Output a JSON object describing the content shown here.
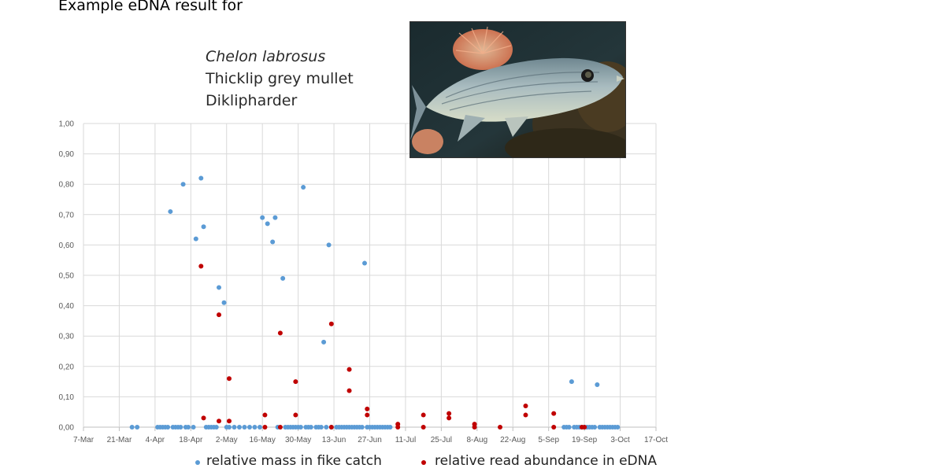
{
  "heading": "Example eDNA result for",
  "species": {
    "latin": "Chelon labrosus",
    "english": "Thicklip grey mullet",
    "dutch": "Diklipharder"
  },
  "photo": {
    "icon": "mullet-fish-photo"
  },
  "legend": [
    {
      "label": "relative mass in fike catch",
      "color": "#5b9bd5"
    },
    {
      "label": "relative read abundance in eDNA",
      "color": "#c00000"
    }
  ],
  "chart_data": {
    "type": "scatter",
    "xlabel": "",
    "ylabel": "",
    "x_ticks": [
      "7-Mar",
      "21-Mar",
      "4-Apr",
      "18-Apr",
      "2-May",
      "16-May",
      "30-May",
      "13-Jun",
      "27-Jun",
      "11-Jul",
      "25-Jul",
      "8-Aug",
      "22-Aug",
      "5-Sep",
      "19-Sep",
      "3-Oct",
      "17-Oct"
    ],
    "y_ticks": [
      "0,00",
      "0,10",
      "0,20",
      "0,30",
      "0,40",
      "0,50",
      "0,60",
      "0,70",
      "0,80",
      "0,90",
      "1,00"
    ],
    "xlim": [
      "7-Mar",
      "17-Oct"
    ],
    "ylim": [
      0,
      1
    ],
    "grid": true,
    "legend_position": "bottom",
    "series": [
      {
        "name": "relative mass in fike catch",
        "color": "#5b9bd5",
        "points": [
          [
            "26-Mar",
            0
          ],
          [
            "28-Mar",
            0
          ],
          [
            "5-Apr",
            0
          ],
          [
            "6-Apr",
            0
          ],
          [
            "7-Apr",
            0
          ],
          [
            "8-Apr",
            0
          ],
          [
            "9-Apr",
            0
          ],
          [
            "10-Apr",
            0.71
          ],
          [
            "11-Apr",
            0
          ],
          [
            "12-Apr",
            0
          ],
          [
            "13-Apr",
            0
          ],
          [
            "14-Apr",
            0
          ],
          [
            "15-Apr",
            0.8
          ],
          [
            "16-Apr",
            0
          ],
          [
            "17-Apr",
            0
          ],
          [
            "19-Apr",
            0
          ],
          [
            "20-Apr",
            0.62
          ],
          [
            "22-Apr",
            0.82
          ],
          [
            "23-Apr",
            0.66
          ],
          [
            "24-Apr",
            0
          ],
          [
            "25-Apr",
            0
          ],
          [
            "26-Apr",
            0
          ],
          [
            "27-Apr",
            0
          ],
          [
            "28-Apr",
            0
          ],
          [
            "29-Apr",
            0.46
          ],
          [
            "1-May",
            0.41
          ],
          [
            "2-May",
            0
          ],
          [
            "3-May",
            0
          ],
          [
            "5-May",
            0
          ],
          [
            "7-May",
            0
          ],
          [
            "9-May",
            0
          ],
          [
            "11-May",
            0
          ],
          [
            "13-May",
            0
          ],
          [
            "15-May",
            0
          ],
          [
            "16-May",
            0.69
          ],
          [
            "18-May",
            0.67
          ],
          [
            "20-May",
            0.61
          ],
          [
            "21-May",
            0.69
          ],
          [
            "22-May",
            0
          ],
          [
            "24-May",
            0.49
          ],
          [
            "25-May",
            0
          ],
          [
            "26-May",
            0
          ],
          [
            "27-May",
            0
          ],
          [
            "28-May",
            0
          ],
          [
            "29-May",
            0
          ],
          [
            "30-May",
            0
          ],
          [
            "31-May",
            0
          ],
          [
            "1-Jun",
            0.79
          ],
          [
            "2-Jun",
            0
          ],
          [
            "3-Jun",
            0
          ],
          [
            "4-Jun",
            0
          ],
          [
            "6-Jun",
            0
          ],
          [
            "7-Jun",
            0
          ],
          [
            "8-Jun",
            0
          ],
          [
            "9-Jun",
            0.28
          ],
          [
            "10-Jun",
            0
          ],
          [
            "11-Jun",
            0.6
          ],
          [
            "12-Jun",
            0
          ],
          [
            "14-Jun",
            0
          ],
          [
            "15-Jun",
            0
          ],
          [
            "16-Jun",
            0
          ],
          [
            "17-Jun",
            0
          ],
          [
            "18-Jun",
            0
          ],
          [
            "19-Jun",
            0
          ],
          [
            "20-Jun",
            0
          ],
          [
            "21-Jun",
            0
          ],
          [
            "22-Jun",
            0
          ],
          [
            "23-Jun",
            0
          ],
          [
            "24-Jun",
            0
          ],
          [
            "25-Jun",
            0.54
          ],
          [
            "26-Jun",
            0
          ],
          [
            "27-Jun",
            0
          ],
          [
            "28-Jun",
            0
          ],
          [
            "29-Jun",
            0
          ],
          [
            "30-Jun",
            0
          ],
          [
            "1-Jul",
            0
          ],
          [
            "2-Jul",
            0
          ],
          [
            "3-Jul",
            0
          ],
          [
            "4-Jul",
            0
          ],
          [
            "5-Jul",
            0
          ],
          [
            "11-Sep",
            0
          ],
          [
            "12-Sep",
            0
          ],
          [
            "13-Sep",
            0
          ],
          [
            "14-Sep",
            0.15
          ],
          [
            "15-Sep",
            0
          ],
          [
            "16-Sep",
            0
          ],
          [
            "17-Sep",
            0
          ],
          [
            "18-Sep",
            0
          ],
          [
            "19-Sep",
            0
          ],
          [
            "20-Sep",
            0
          ],
          [
            "21-Sep",
            0
          ],
          [
            "22-Sep",
            0
          ],
          [
            "23-Sep",
            0
          ],
          [
            "24-Sep",
            0.14
          ],
          [
            "25-Sep",
            0
          ],
          [
            "26-Sep",
            0
          ],
          [
            "27-Sep",
            0
          ],
          [
            "28-Sep",
            0
          ],
          [
            "29-Sep",
            0
          ],
          [
            "30-Sep",
            0
          ],
          [
            "1-Oct",
            0
          ],
          [
            "2-Oct",
            0
          ]
        ]
      },
      {
        "name": "relative read abundance in eDNA",
        "color": "#c00000",
        "points": [
          [
            "22-Apr",
            0.53
          ],
          [
            "23-Apr",
            0.03
          ],
          [
            "29-Apr",
            0.37
          ],
          [
            "29-Apr",
            0.02
          ],
          [
            "3-May",
            0.16
          ],
          [
            "3-May",
            0.02
          ],
          [
            "17-May",
            0.04
          ],
          [
            "17-May",
            0
          ],
          [
            "23-May",
            0.31
          ],
          [
            "23-May",
            0
          ],
          [
            "29-May",
            0.15
          ],
          [
            "29-May",
            0.04
          ],
          [
            "12-Jun",
            0.34
          ],
          [
            "12-Jun",
            0
          ],
          [
            "19-Jun",
            0.19
          ],
          [
            "19-Jun",
            0.12
          ],
          [
            "26-Jun",
            0.06
          ],
          [
            "26-Jun",
            0.04
          ],
          [
            "8-Jul",
            0.01
          ],
          [
            "8-Jul",
            0
          ],
          [
            "18-Jul",
            0.04
          ],
          [
            "18-Jul",
            0
          ],
          [
            "28-Jul",
            0.045
          ],
          [
            "28-Jul",
            0.03
          ],
          [
            "7-Aug",
            0.01
          ],
          [
            "7-Aug",
            0
          ],
          [
            "17-Aug",
            0
          ],
          [
            "27-Aug",
            0.07
          ],
          [
            "27-Aug",
            0.04
          ],
          [
            "7-Sep",
            0.045
          ],
          [
            "7-Sep",
            0
          ],
          [
            "18-Sep",
            0
          ],
          [
            "19-Sep",
            0
          ]
        ]
      }
    ]
  }
}
